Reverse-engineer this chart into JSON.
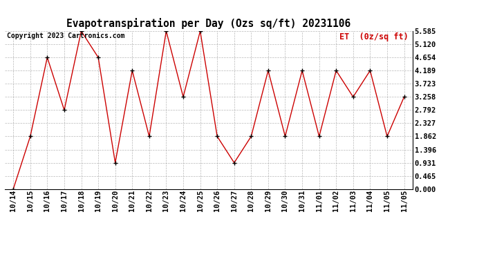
{
  "title": "Evapotranspiration per Day (Ozs sq/ft) 20231106",
  "legend_label": "ET  (0z/sq ft)",
  "copyright_text": "Copyright 2023 Cartronics.com",
  "x_labels": [
    "10/14",
    "10/15",
    "10/16",
    "10/17",
    "10/18",
    "10/19",
    "10/20",
    "10/21",
    "10/22",
    "10/23",
    "10/24",
    "10/25",
    "10/26",
    "10/27",
    "10/28",
    "10/29",
    "10/30",
    "10/31",
    "11/01",
    "11/02",
    "11/03",
    "11/04",
    "11/05",
    "11/05"
  ],
  "y_values": [
    0.0,
    1.862,
    4.654,
    2.792,
    5.585,
    4.654,
    0.931,
    4.189,
    1.862,
    5.585,
    3.258,
    5.585,
    1.862,
    0.931,
    1.862,
    4.189,
    1.862,
    4.189,
    1.862,
    4.189,
    3.258,
    4.189,
    1.862,
    3.258
  ],
  "ytick_values": [
    0.0,
    0.465,
    0.931,
    1.396,
    1.862,
    2.327,
    2.792,
    3.258,
    3.723,
    4.189,
    4.654,
    5.12,
    5.585
  ],
  "line_color": "#cc0000",
  "marker_color": "#000000",
  "background_color": "#ffffff",
  "grid_color": "#999999",
  "title_color": "#000000",
  "legend_color": "#cc0000",
  "copyright_color": "#000000",
  "ylim": [
    0.0,
    5.585
  ],
  "title_fontsize": 10.5,
  "axis_fontsize": 7.5,
  "legend_fontsize": 8.5,
  "copyright_fontsize": 7
}
